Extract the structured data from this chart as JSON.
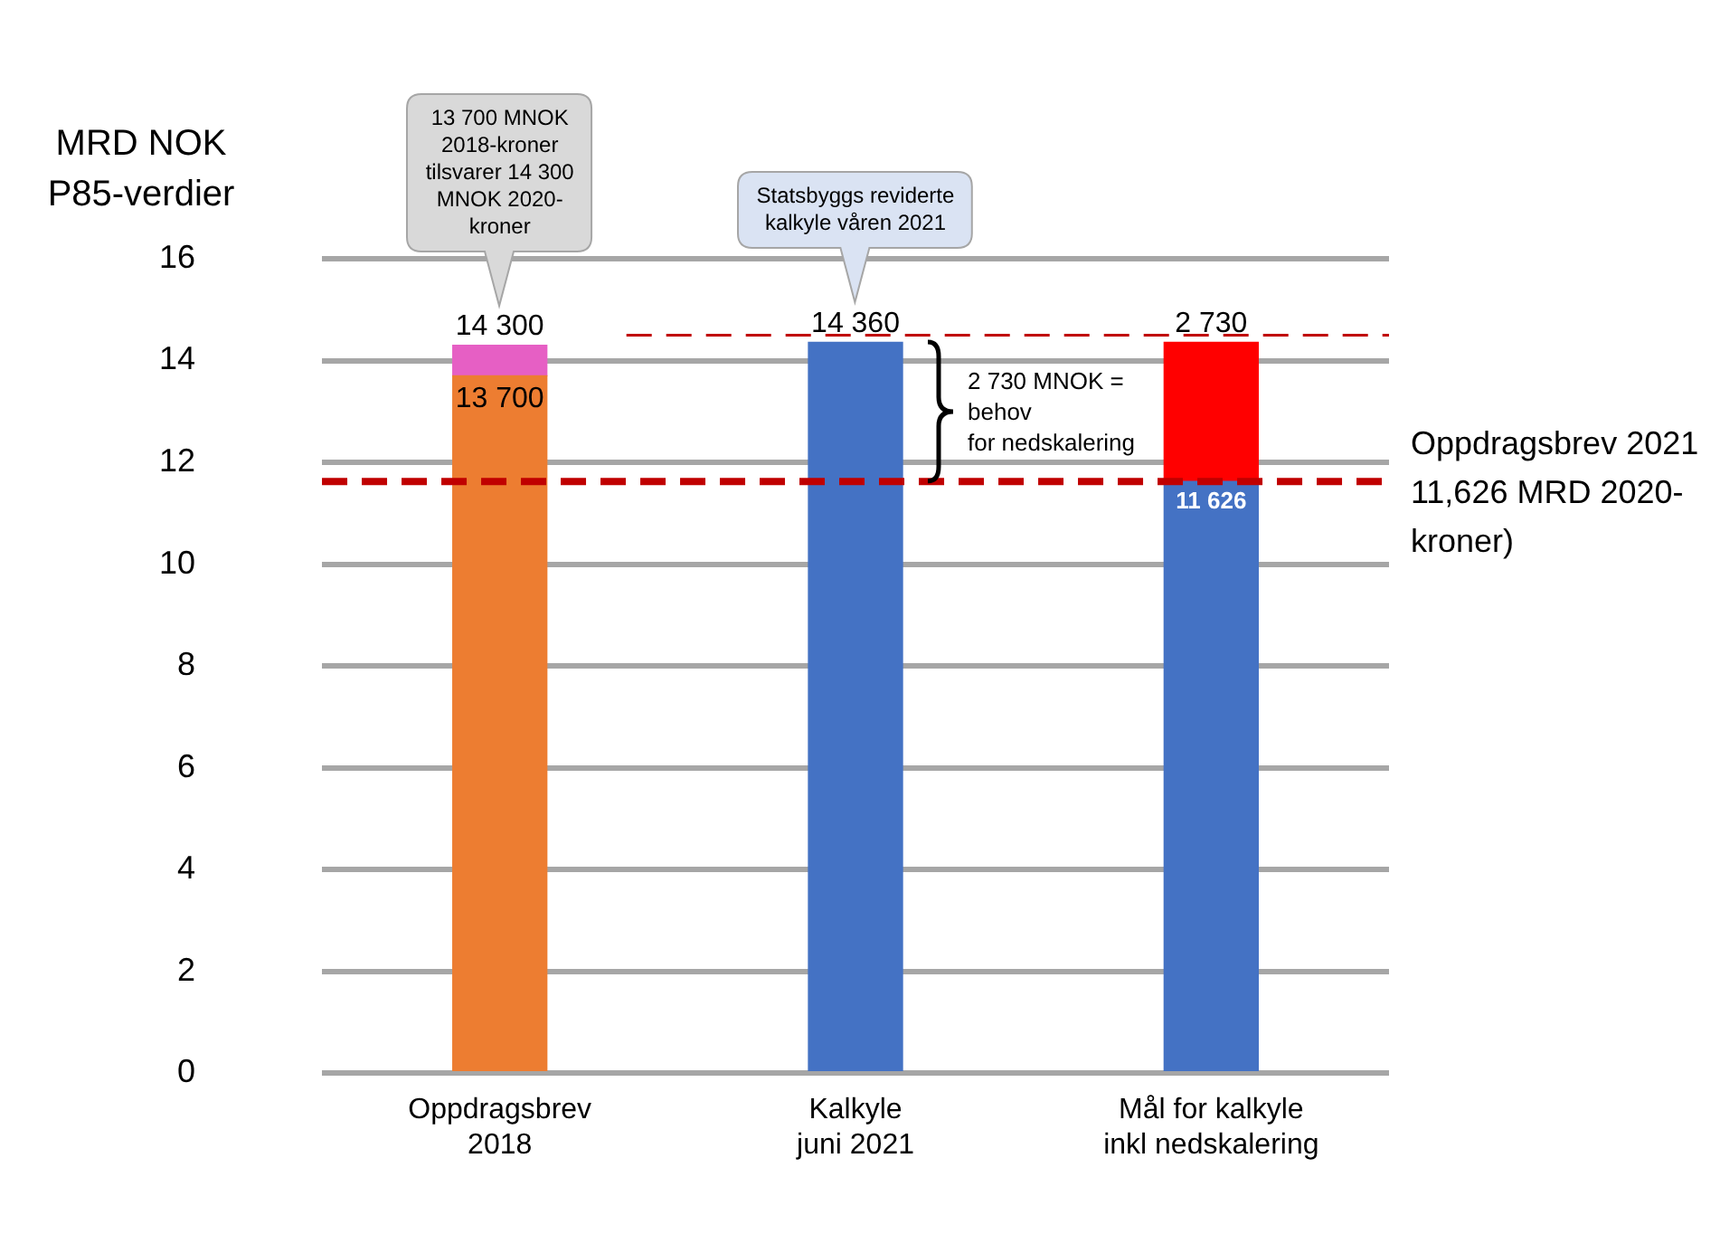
{
  "chart_data": {
    "type": "bar",
    "ylabel": "MRD NOK\nP85-verdier",
    "categories": [
      "Oppdragsbrev\n2018",
      "Kalkyle\njuni 2021",
      "Mål for kalkyle\ninkl nedskalering"
    ],
    "series": [
      {
        "colors": [
          "#ed7d31",
          "#4472c4",
          "#4472c4"
        ],
        "values": [
          13.7,
          14.36,
          11.626
        ]
      },
      {
        "colors": [
          "#e65fc4",
          null,
          "#ff0000"
        ],
        "values": [
          0.6,
          null,
          2.73
        ]
      }
    ],
    "stacked": true,
    "ylim": [
      0,
      16
    ],
    "yticks": [
      0,
      2,
      4,
      6,
      8,
      10,
      12,
      14,
      16
    ],
    "grid": "y",
    "legend": false,
    "ref_lines": [
      {
        "axis": "y",
        "value": 11.626,
        "label": "Oppdragsbrev 2021\n11,626 MRD 2020-\nkroner)",
        "color": "#c00000",
        "line_style": "dashed"
      },
      {
        "axis": "y",
        "value": 14.5,
        "color": "#c00000",
        "line_style": "dashed"
      }
    ],
    "annotations": [
      "13 700 MNOK\n2018-kroner\ntilsvarer 14 300\nMNOK 2020-\nkroner",
      "Statsbyggs reviderte\nkalkyle våren 2021",
      "2 730 MNOK =\nbehov\nfor nedskalering",
      {
        "text": "14 300",
        "x": "Oppdragsbrev\n2018",
        "y": 14.3
      },
      {
        "text": "13 700",
        "x": "Oppdragsbrev\n2018",
        "y": 13.7
      },
      {
        "text": "14 360",
        "x": "Kalkyle\njuni 2021",
        "y": 14.36
      },
      {
        "text": "2 730",
        "x": "Mål for kalkyle\ninkl nedskalering",
        "y": 14.356
      },
      {
        "text": "11 626",
        "x": "Mål for kalkyle\ninkl nedskalering",
        "y": 11.626
      }
    ]
  }
}
